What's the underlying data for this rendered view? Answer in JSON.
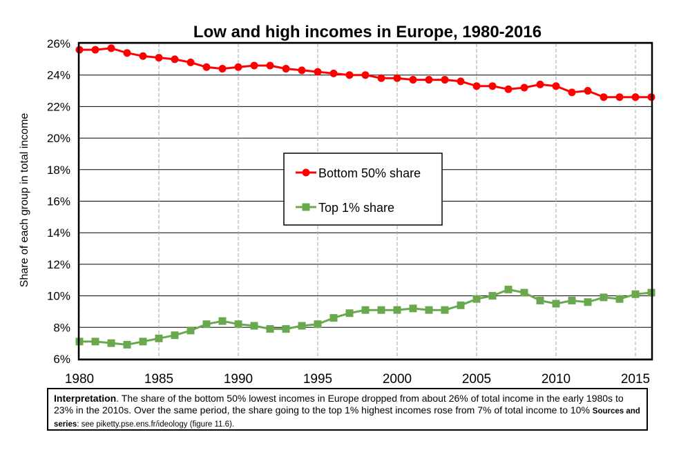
{
  "chart_data": {
    "type": "line",
    "title": "Low and high incomes in Europe, 1980-2016",
    "ylabel": "Share of each group in total income",
    "xlabel": "",
    "xlim": [
      1980,
      2016
    ],
    "ylim": [
      6,
      26
    ],
    "x_ticks": [
      "1980",
      "1985",
      "1990",
      "1995",
      "2000",
      "2005",
      "2010",
      "2015"
    ],
    "y_ticks": [
      "6%",
      "8%",
      "10%",
      "12%",
      "14%",
      "16%",
      "18%",
      "20%",
      "22%",
      "24%",
      "26%"
    ],
    "grid": true,
    "legend_position": "center",
    "x": [
      1980,
      1981,
      1982,
      1983,
      1984,
      1985,
      1986,
      1987,
      1988,
      1989,
      1990,
      1991,
      1992,
      1993,
      1994,
      1995,
      1996,
      1997,
      1998,
      1999,
      2000,
      2001,
      2002,
      2003,
      2004,
      2005,
      2006,
      2007,
      2008,
      2009,
      2010,
      2011,
      2012,
      2013,
      2014,
      2015,
      2016
    ],
    "series": [
      {
        "name": "Bottom 50% share",
        "color": "#ff0000",
        "marker": "circle",
        "values": [
          25.6,
          25.6,
          25.7,
          25.4,
          25.2,
          25.1,
          25.0,
          24.8,
          24.5,
          24.4,
          24.5,
          24.6,
          24.6,
          24.4,
          24.3,
          24.2,
          24.1,
          24.0,
          24.0,
          23.8,
          23.8,
          23.7,
          23.7,
          23.7,
          23.6,
          23.3,
          23.3,
          23.1,
          23.2,
          23.4,
          23.3,
          22.9,
          23.0,
          22.6,
          22.6,
          22.6,
          22.6
        ]
      },
      {
        "name": "Top 1% share",
        "color": "#6aa84f",
        "marker": "square",
        "values": [
          7.1,
          7.1,
          7.0,
          6.9,
          7.1,
          7.3,
          7.5,
          7.8,
          8.2,
          8.4,
          8.2,
          8.1,
          7.9,
          7.9,
          8.1,
          8.2,
          8.6,
          8.9,
          9.1,
          9.1,
          9.1,
          9.2,
          9.1,
          9.1,
          9.4,
          9.8,
          10.0,
          10.4,
          10.2,
          9.7,
          9.5,
          9.7,
          9.6,
          9.9,
          9.8,
          10.1,
          10.2
        ]
      }
    ]
  },
  "interpretation": {
    "label": "Interpretation",
    "text": ". The share of the bottom 50% lowest incomes in Europe dropped from about 26% of total income in the early 1980s to 23% in the 2010s. Over the same period, the share going to the top 1% highest incomes rose from 7% of total income to 10%",
    "sources_label": "Sources and series",
    "sources_text": ": see piketty.pse.ens.fr/ideology (figure 11.6)."
  }
}
